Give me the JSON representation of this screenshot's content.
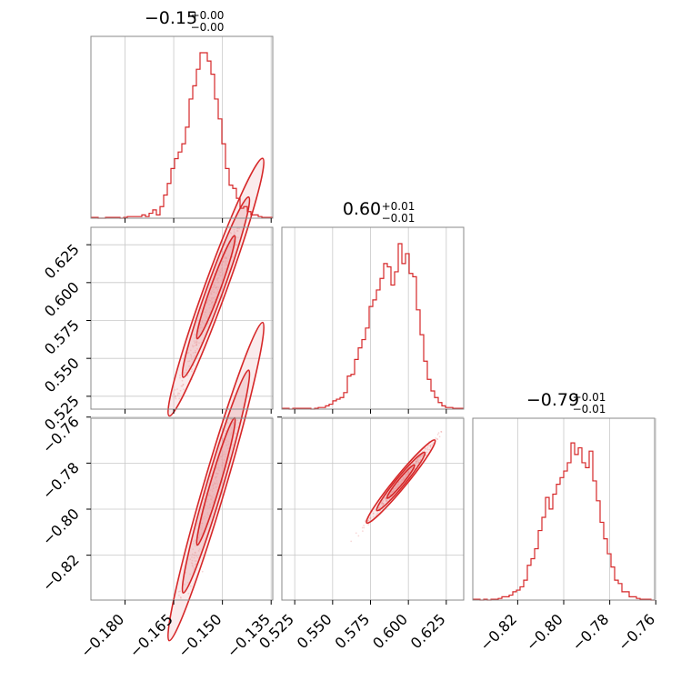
{
  "chart_data": {
    "type": "corner",
    "color": "#d62728",
    "parameters": [
      {
        "title": {
          "median": "−0.15",
          "plus": "+0.00",
          "minus": "−0.00"
        },
        "range": [
          -0.1905,
          -0.1345
        ],
        "ticks": [
          {
            "value": -0.18,
            "label": "−0.180"
          },
          {
            "value": -0.165,
            "label": "−0.165"
          },
          {
            "value": -0.15,
            "label": "−0.150"
          },
          {
            "value": -0.135,
            "label": "−0.135"
          }
        ],
        "histogram": [
          0.005,
          0.005,
          0.0,
          0.0,
          0.005,
          0.005,
          0.005,
          0.005,
          0.0,
          0.005,
          0.01,
          0.01,
          0.01,
          0.01,
          0.02,
          0.01,
          0.03,
          0.05,
          0.02,
          0.07,
          0.14,
          0.21,
          0.3,
          0.36,
          0.4,
          0.45,
          0.55,
          0.72,
          0.8,
          0.9,
          1.0,
          1.0,
          0.95,
          0.87,
          0.72,
          0.6,
          0.45,
          0.3,
          0.2,
          0.18,
          0.12,
          0.06,
          0.07,
          0.04,
          0.02,
          0.02,
          0.01,
          0.005,
          0.005,
          0.005
        ]
      },
      {
        "title": {
          "median": "0.60",
          "plus": "+0.01",
          "minus": "−0.01"
        },
        "range": [
          0.5165,
          0.6365
        ],
        "ticks": [
          {
            "value": 0.525,
            "label": "0.525"
          },
          {
            "value": 0.55,
            "label": "0.550"
          },
          {
            "value": 0.575,
            "label": "0.575"
          },
          {
            "value": 0.6,
            "label": "0.600"
          },
          {
            "value": 0.625,
            "label": "0.625"
          }
        ],
        "histogram": [
          0.005,
          0.005,
          0.0,
          0.005,
          0.005,
          0.005,
          0.005,
          0.005,
          0.0,
          0.005,
          0.01,
          0.01,
          0.02,
          0.03,
          0.05,
          0.06,
          0.07,
          0.1,
          0.2,
          0.21,
          0.3,
          0.37,
          0.42,
          0.49,
          0.62,
          0.66,
          0.72,
          0.79,
          0.88,
          0.86,
          0.75,
          0.83,
          1.0,
          0.88,
          0.94,
          0.82,
          0.8,
          0.6,
          0.45,
          0.29,
          0.18,
          0.11,
          0.07,
          0.04,
          0.02,
          0.01,
          0.01,
          0.005,
          0.005,
          0.005
        ]
      },
      {
        "title": {
          "median": "−0.79",
          "plus": "+0.01",
          "minus": "−0.01"
        },
        "range": [
          -0.8395,
          -0.7605
        ],
        "ticks": [
          {
            "value": -0.82,
            "label": "−0.82"
          },
          {
            "value": -0.8,
            "label": "−0.80"
          },
          {
            "value": -0.78,
            "label": "−0.78"
          },
          {
            "value": -0.76,
            "label": "−0.76"
          }
        ],
        "histogram": [
          0.005,
          0.005,
          0.0,
          0.005,
          0.0,
          0.005,
          0.005,
          0.01,
          0.02,
          0.02,
          0.03,
          0.05,
          0.06,
          0.08,
          0.12,
          0.21,
          0.25,
          0.31,
          0.42,
          0.5,
          0.62,
          0.55,
          0.64,
          0.7,
          0.74,
          0.78,
          0.83,
          0.95,
          0.88,
          0.92,
          0.83,
          0.8,
          0.9,
          0.72,
          0.6,
          0.47,
          0.37,
          0.28,
          0.2,
          0.12,
          0.1,
          0.05,
          0.05,
          0.02,
          0.02,
          0.01,
          0.005,
          0.005,
          0.005,
          0.0
        ]
      }
    ],
    "joint": [
      {
        "row": 1,
        "col": 0,
        "slope": 5.9,
        "width": 0.0042
      },
      {
        "row": 2,
        "col": 0,
        "slope": 4.8,
        "width": 0.004
      },
      {
        "row": 2,
        "col": 1,
        "slope": 0.8,
        "width": 0.0009
      }
    ],
    "grid": true
  }
}
